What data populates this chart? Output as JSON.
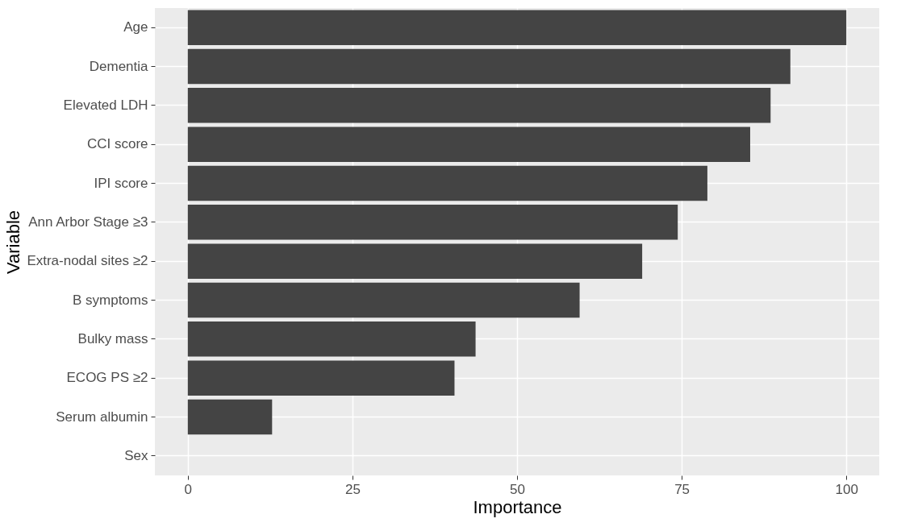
{
  "chart_data": {
    "type": "bar",
    "orientation": "horizontal",
    "xlabel": "Importance",
    "ylabel": "Variable",
    "categories": [
      "Age",
      "Dementia",
      "Elevated LDH",
      "CCI score",
      "IPI score",
      "Ann Arbor Stage ≥3",
      "Extra-nodal sites ≥2",
      "B symptoms",
      "Bulky mass",
      "ECOG PS ≥2",
      "Serum albumin",
      "Sex"
    ],
    "values": [
      100,
      91.5,
      88.5,
      85.4,
      78.9,
      74.4,
      69.0,
      59.5,
      43.7,
      40.5,
      12.8,
      0
    ],
    "color": "#444444",
    "xlim": [
      -5,
      105
    ],
    "xticks": [
      0,
      25,
      50,
      75,
      100
    ],
    "grid": true
  }
}
